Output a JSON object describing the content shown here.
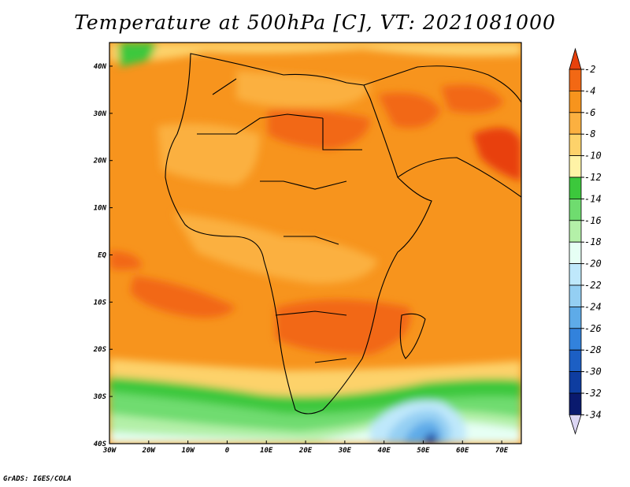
{
  "title": "Temperature at 500hPa [C], VT: 2021081000",
  "credit": "GrADS: IGES/COLA",
  "map": {
    "lon_range": [
      -30,
      75
    ],
    "lat_range": [
      -40,
      45
    ],
    "lon_ticks": [
      {
        "value": -30,
        "label": "30W"
      },
      {
        "value": -20,
        "label": "20W"
      },
      {
        "value": -10,
        "label": "10W"
      },
      {
        "value": 0,
        "label": "0"
      },
      {
        "value": 10,
        "label": "10E"
      },
      {
        "value": 20,
        "label": "20E"
      },
      {
        "value": 30,
        "label": "30E"
      },
      {
        "value": 40,
        "label": "40E"
      },
      {
        "value": 50,
        "label": "50E"
      },
      {
        "value": 60,
        "label": "60E"
      },
      {
        "value": 70,
        "label": "70E"
      }
    ],
    "lat_ticks": [
      {
        "value": 40,
        "label": "40N"
      },
      {
        "value": 30,
        "label": "30N"
      },
      {
        "value": 20,
        "label": "20N"
      },
      {
        "value": 10,
        "label": "10N"
      },
      {
        "value": 0,
        "label": "EQ"
      },
      {
        "value": -10,
        "label": "10S"
      },
      {
        "value": -20,
        "label": "20S"
      },
      {
        "value": -30,
        "label": "30S"
      },
      {
        "value": -40,
        "label": "40S"
      }
    ]
  },
  "colorbar": {
    "labels": [
      "-2",
      "-4",
      "-6",
      "-8",
      "-10",
      "-12",
      "-14",
      "-16",
      "-18",
      "-20",
      "-22",
      "-24",
      "-26",
      "-28",
      "-30",
      "-32",
      "-34"
    ],
    "colors": [
      "#e8410c",
      "#f26814",
      "#f7941d",
      "#fbb040",
      "#fdd26a",
      "#fff3a6",
      "#3cc83c",
      "#6fdc6f",
      "#b4f0a8",
      "#e6fff4",
      "#bfe8fb",
      "#94cff3",
      "#5eabe8",
      "#3282dc",
      "#1c5fc4",
      "#0e3da0",
      "#0a1a6e",
      "#dcd6f4"
    ]
  }
}
